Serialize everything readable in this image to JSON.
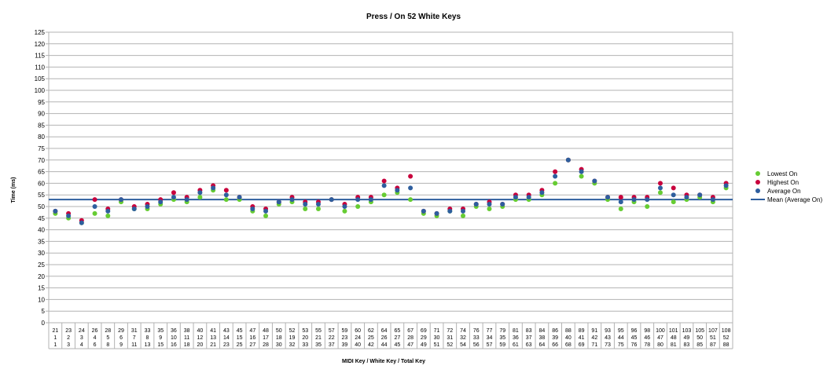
{
  "chart_data": {
    "type": "scatter",
    "title": "Press / On 52 White Keys",
    "xlabel": "MIDI Key / White Key / Total Key",
    "ylabel": "Time (ms)",
    "ylim": [
      0,
      125
    ],
    "y_ticks": [
      0,
      5,
      10,
      15,
      20,
      25,
      30,
      35,
      40,
      45,
      50,
      55,
      60,
      65,
      70,
      75,
      80,
      85,
      90,
      95,
      100,
      105,
      110,
      115,
      120,
      125
    ],
    "grid": "horizontal",
    "legend": "right",
    "categories": [
      {
        "midi": "21",
        "white": "1",
        "total": "1"
      },
      {
        "midi": "23",
        "white": "2",
        "total": "3"
      },
      {
        "midi": "24",
        "white": "3",
        "total": "4"
      },
      {
        "midi": "26",
        "white": "4",
        "total": "6"
      },
      {
        "midi": "28",
        "white": "5",
        "total": "8"
      },
      {
        "midi": "29",
        "white": "6",
        "total": "9"
      },
      {
        "midi": "31",
        "white": "7",
        "total": "11"
      },
      {
        "midi": "33",
        "white": "8",
        "total": "13"
      },
      {
        "midi": "35",
        "white": "9",
        "total": "15"
      },
      {
        "midi": "36",
        "white": "10",
        "total": "16"
      },
      {
        "midi": "38",
        "white": "11",
        "total": "18"
      },
      {
        "midi": "40",
        "white": "12",
        "total": "20"
      },
      {
        "midi": "41",
        "white": "13",
        "total": "21"
      },
      {
        "midi": "43",
        "white": "14",
        "total": "23"
      },
      {
        "midi": "45",
        "white": "15",
        "total": "25"
      },
      {
        "midi": "47",
        "white": "16",
        "total": "27"
      },
      {
        "midi": "48",
        "white": "17",
        "total": "28"
      },
      {
        "midi": "50",
        "white": "18",
        "total": "30"
      },
      {
        "midi": "52",
        "white": "19",
        "total": "32"
      },
      {
        "midi": "53",
        "white": "20",
        "total": "33"
      },
      {
        "midi": "55",
        "white": "21",
        "total": "35"
      },
      {
        "midi": "57",
        "white": "22",
        "total": "37"
      },
      {
        "midi": "59",
        "white": "23",
        "total": "39"
      },
      {
        "midi": "60",
        "white": "24",
        "total": "40"
      },
      {
        "midi": "62",
        "white": "25",
        "total": "42"
      },
      {
        "midi": "64",
        "white": "26",
        "total": "44"
      },
      {
        "midi": "65",
        "white": "27",
        "total": "45"
      },
      {
        "midi": "67",
        "white": "28",
        "total": "47"
      },
      {
        "midi": "69",
        "white": "29",
        "total": "49"
      },
      {
        "midi": "71",
        "white": "30",
        "total": "51"
      },
      {
        "midi": "72",
        "white": "31",
        "total": "52"
      },
      {
        "midi": "74",
        "white": "32",
        "total": "54"
      },
      {
        "midi": "76",
        "white": "33",
        "total": "56"
      },
      {
        "midi": "77",
        "white": "34",
        "total": "57"
      },
      {
        "midi": "79",
        "white": "35",
        "total": "59"
      },
      {
        "midi": "81",
        "white": "36",
        "total": "61"
      },
      {
        "midi": "83",
        "white": "37",
        "total": "63"
      },
      {
        "midi": "84",
        "white": "38",
        "total": "64"
      },
      {
        "midi": "86",
        "white": "39",
        "total": "66"
      },
      {
        "midi": "88",
        "white": "40",
        "total": "68"
      },
      {
        "midi": "89",
        "white": "41",
        "total": "69"
      },
      {
        "midi": "91",
        "white": "42",
        "total": "71"
      },
      {
        "midi": "93",
        "white": "43",
        "total": "73"
      },
      {
        "midi": "95",
        "white": "44",
        "total": "75"
      },
      {
        "midi": "96",
        "white": "45",
        "total": "76"
      },
      {
        "midi": "98",
        "white": "46",
        "total": "78"
      },
      {
        "midi": "100",
        "white": "47",
        "total": "80"
      },
      {
        "midi": "101",
        "white": "48",
        "total": "81"
      },
      {
        "midi": "103",
        "white": "49",
        "total": "83"
      },
      {
        "midi": "105",
        "white": "50",
        "total": "85"
      },
      {
        "midi": "107",
        "white": "51",
        "total": "87"
      },
      {
        "midi": "108",
        "white": "52",
        "total": "88"
      }
    ],
    "series": [
      {
        "name": "Lowest On",
        "color": "#66cc33",
        "values": [
          47,
          45,
          43,
          47,
          46,
          52,
          49,
          49,
          51,
          53,
          52,
          54,
          57,
          53,
          53,
          48,
          46,
          51,
          52,
          49,
          49,
          53,
          48,
          50,
          52,
          55,
          56,
          53,
          47,
          46,
          48,
          46,
          50,
          49,
          50,
          53,
          53,
          55,
          60,
          70,
          63,
          60,
          53,
          49,
          52,
          50,
          56,
          52,
          53,
          54,
          52,
          58
        ]
      },
      {
        "name": "Highest On",
        "color": "#c8003c",
        "values": [
          48,
          47,
          44,
          53,
          49,
          53,
          50,
          51,
          53,
          56,
          54,
          57,
          59,
          57,
          54,
          50,
          49,
          52,
          54,
          52,
          52,
          53,
          51,
          54,
          54,
          61,
          58,
          63,
          48,
          47,
          49,
          49,
          51,
          52,
          51,
          55,
          55,
          57,
          65,
          70,
          66,
          61,
          54,
          54,
          54,
          54,
          60,
          58,
          55,
          55,
          54,
          60
        ]
      },
      {
        "name": "Average On",
        "color": "#2e5e9e",
        "values": [
          48,
          46,
          43,
          50,
          48,
          53,
          49,
          50,
          52,
          54,
          53,
          56,
          58,
          55,
          54,
          49,
          48,
          52,
          53,
          51,
          51,
          53,
          50,
          53,
          53,
          59,
          57,
          58,
          48,
          47,
          48,
          48,
          51,
          51,
          51,
          54,
          54,
          56,
          63,
          70,
          65,
          61,
          54,
          52,
          53,
          53,
          58,
          55,
          54,
          55,
          53,
          59
        ]
      }
    ],
    "mean_line": {
      "name": "Mean (Average On)",
      "color": "#2e5e9e",
      "value": 53
    }
  }
}
